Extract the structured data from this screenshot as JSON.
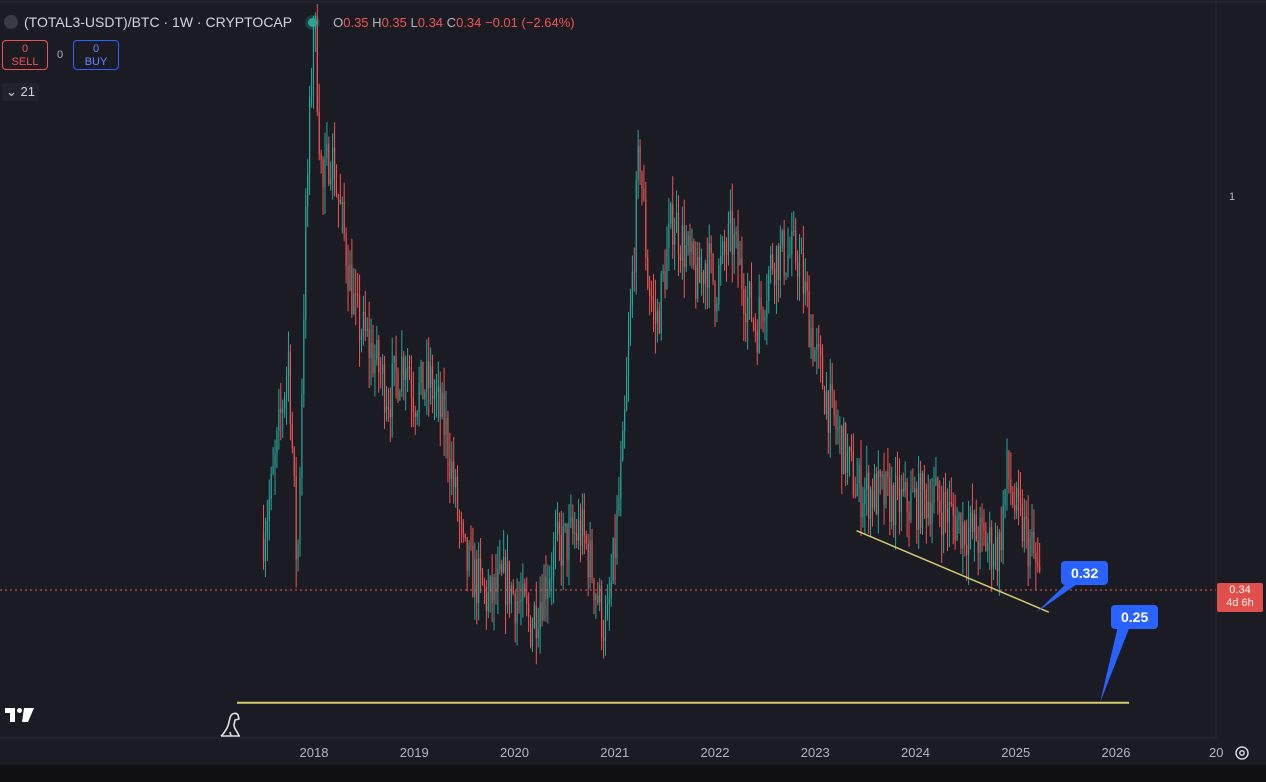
{
  "header": {
    "symbol": "(TOTAL3-USDT)/BTC · 1W · CRYPTOCAP",
    "open_key": "O",
    "open": "0.35",
    "high_key": "H",
    "high": "0.35",
    "low_key": "L",
    "low": "0.34",
    "close_key": "C",
    "close": "0.34",
    "change": "−0.01 (−2.64%)"
  },
  "trade": {
    "sell_value": "0",
    "sell_label": "SELL",
    "quantity": "0",
    "buy_value": "0",
    "buy_label": "BUY"
  },
  "indicators_toggle": "21",
  "price_axis": {
    "tick_labels": [
      "1"
    ],
    "current_price": "0.34",
    "countdown": "4d 6h"
  },
  "annotations": {
    "callout_upper": "0.32",
    "callout_lower": "0.25"
  },
  "colors": {
    "up": "#26a69a",
    "down": "#ef5350",
    "trendline": "#d4cc6a",
    "callout": "#2962ff",
    "background": "#1b1b24"
  },
  "icons": {
    "logo": "tradingview-logo",
    "dino": "dinosaur-icon",
    "settings": "gear-icon"
  },
  "chart_data": {
    "type": "candlestick",
    "scale": "log",
    "interval": "1W",
    "x_tick_labels": [
      "2018",
      "2019",
      "2020",
      "2021",
      "2022",
      "2023",
      "2024",
      "2025",
      "2026",
      "20"
    ],
    "y_tick_labels": [
      "1"
    ],
    "price_trajectory": {
      "date": [
        "2017-07",
        "2017-08",
        "2017-10",
        "2017-11",
        "2017-12",
        "2018-01",
        "2018-01-15",
        "2018-02",
        "2018-03",
        "2018-05",
        "2018-06",
        "2018-08",
        "2018-10",
        "2018-12",
        "2019-01",
        "2019-03",
        "2019-05",
        "2019-07",
        "2019-10",
        "2019-12",
        "2020-03",
        "2020-06",
        "2020-09",
        "2020-10",
        "2020-12",
        "2021-01",
        "2021-02",
        "2021-04",
        "2021-05",
        "2021-06",
        "2021-08",
        "2021-11",
        "2021-12",
        "2022-01",
        "2022-03",
        "2022-05",
        "2022-06",
        "2022-08",
        "2022-11",
        "2023-01",
        "2023-03",
        "2023-06",
        "2023-09",
        "2023-12",
        "2024-03",
        "2024-06",
        "2024-09",
        "2024-11",
        "2024-12",
        "2025-01",
        "2025-02",
        "2025-03",
        "2025-04"
      ],
      "price": [
        0.4,
        0.45,
        0.65,
        0.35,
        0.9,
        1.7,
        1.3,
        1.0,
        1.15,
        0.85,
        0.72,
        0.65,
        0.58,
        0.65,
        0.58,
        0.6,
        0.52,
        0.37,
        0.33,
        0.35,
        0.31,
        0.38,
        0.4,
        0.37,
        0.3,
        0.38,
        0.5,
        1.15,
        0.8,
        0.7,
        0.95,
        0.78,
        0.85,
        0.78,
        0.9,
        0.75,
        0.7,
        0.85,
        0.85,
        0.65,
        0.55,
        0.45,
        0.44,
        0.43,
        0.44,
        0.41,
        0.39,
        0.38,
        0.47,
        0.42,
        0.4,
        0.38,
        0.34
      ]
    },
    "last_price": 0.34,
    "support_level": 0.25,
    "falling_trendline": {
      "start_date": "2023-06",
      "start_value": 0.4,
      "end_date": "2025-05",
      "end_value": 0.32
    }
  }
}
